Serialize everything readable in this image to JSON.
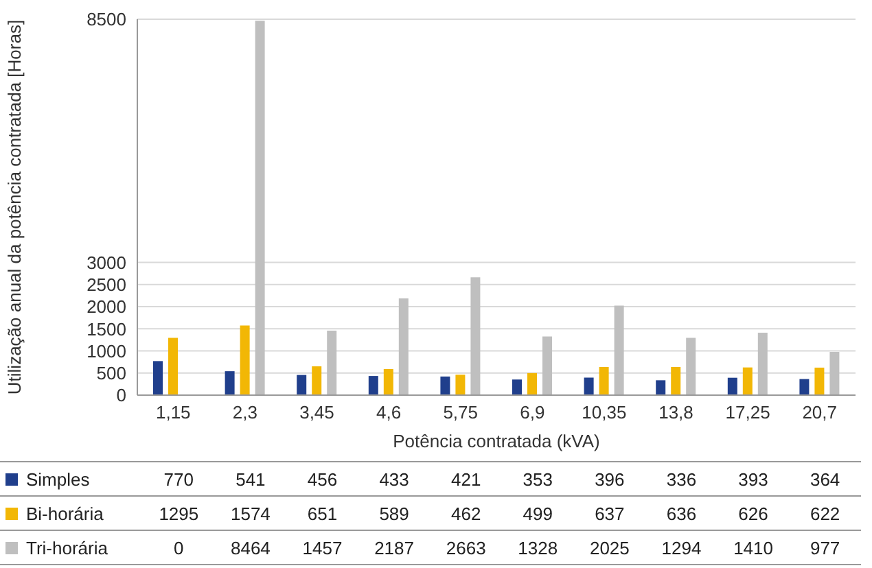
{
  "chart_data": {
    "type": "bar",
    "xlabel": "Potência contratada (kVA)",
    "ylabel": "Utilização anual da potência contratada [Horas]",
    "categories": [
      "1,15",
      "2,3",
      "3,45",
      "4,6",
      "5,75",
      "6,9",
      "10,35",
      "13,8",
      "17,25",
      "20,7"
    ],
    "series": [
      {
        "name": "Simples",
        "color": "#203f8c",
        "values": [
          770,
          541,
          456,
          433,
          421,
          353,
          396,
          336,
          393,
          364
        ]
      },
      {
        "name": "Bi-horária",
        "color": "#f2b705",
        "values": [
          1295,
          1574,
          651,
          589,
          462,
          499,
          637,
          636,
          626,
          622
        ]
      },
      {
        "name": "Tri-horária",
        "color": "#bfbfbf",
        "values": [
          0,
          8464,
          1457,
          2187,
          2663,
          1328,
          2025,
          1294,
          1410,
          977
        ]
      }
    ],
    "ylim": [
      0,
      8500
    ],
    "yticks": [
      0,
      500,
      1000,
      1500,
      2000,
      2500,
      3000,
      8500
    ],
    "grid": "y",
    "legend": "bottom",
    "data_labels": true
  }
}
